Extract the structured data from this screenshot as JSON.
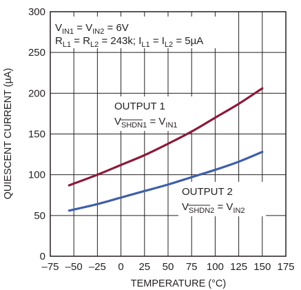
{
  "chart_data": {
    "type": "line",
    "xlabel": "TEMPERATURE (°C)",
    "ylabel": "QUIESCENT CURRENT (µA)",
    "xlim": [
      -75,
      175
    ],
    "ylim": [
      0,
      300
    ],
    "xticks": [
      -75,
      -50,
      -25,
      0,
      25,
      50,
      75,
      100,
      125,
      150,
      175
    ],
    "yticks": [
      0,
      50,
      100,
      150,
      200,
      250,
      300
    ],
    "xtick_labels": [
      "–75",
      "–50",
      "–25",
      "0",
      "25",
      "50",
      "75",
      "100",
      "125",
      "150",
      "175"
    ],
    "ytick_labels": [
      "0",
      "50",
      "100",
      "150",
      "200",
      "250",
      "300"
    ],
    "grid": true,
    "series": [
      {
        "name": "OUTPUT 1",
        "color": "#8b1a3a",
        "x": [
          -55,
          -25,
          0,
          25,
          50,
          75,
          100,
          125,
          150
        ],
        "y": [
          87,
          100,
          112,
          124,
          138,
          153,
          170,
          187,
          206
        ]
      },
      {
        "name": "OUTPUT 2",
        "color": "#3f5fa8",
        "x": [
          -55,
          -25,
          0,
          25,
          50,
          75,
          100,
          125,
          150
        ],
        "y": [
          56,
          64,
          72,
          80,
          88,
          97,
          106,
          116,
          128
        ]
      }
    ],
    "annotations": {
      "conditions_line1": {
        "v1": "V",
        "s1": "IN1",
        "eq1": " = V",
        "s2": "IN2",
        "rest": " = 6V"
      },
      "conditions_line2": {
        "r1": "R",
        "s1": "L1",
        "eq1": " = R",
        "s2": "L2",
        "mid": " = 243k; I",
        "s3": "L1",
        "eq2": " = I",
        "s4": "L2",
        "rest": " = 5µA"
      },
      "output1": {
        "title": "OUTPUT 1",
        "v": "V",
        "sub_shdn": "SHDN1",
        "eq": " = V",
        "sub_in": "IN1"
      },
      "output2": {
        "title": "OUTPUT 2",
        "v": "V",
        "sub_shdn": "SHDN2",
        "eq": " = V",
        "sub_in": "IN2"
      }
    }
  }
}
